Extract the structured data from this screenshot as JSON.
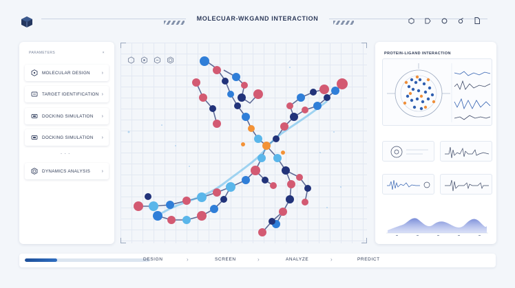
{
  "header": {
    "title": "MOLECUAR-WKGAND INTERACTION",
    "icons": [
      "cube-logo-icon",
      "hexagon-icon",
      "tag-icon",
      "circle-icon",
      "camera-icon",
      "file-icon"
    ]
  },
  "left_panel": {
    "header_label": "PARAMETERS",
    "header_action": "×",
    "items": [
      {
        "label": "MOLECULAR DESIGN",
        "icon": "hexagon-molecule-icon"
      },
      {
        "label": "TARGET IDENTIFICATION",
        "icon": "target-icon"
      },
      {
        "label": "DOCKING SIMULATION",
        "icon": "docking-icon"
      },
      {
        "label": "DOCKING SIMULATION",
        "icon": "docking-icon"
      },
      {
        "label": "DYNAMICS ANALYSIS",
        "icon": "dynamics-icon"
      }
    ],
    "ellipsis": "- - -",
    "chevron": "›"
  },
  "canvas": {
    "toolbar_icons": [
      "hexagon-tool-icon",
      "atom-tool-icon",
      "bond-tool-icon",
      "ring-tool-icon"
    ]
  },
  "right_panel": {
    "title": "PROTEIN-LIGAND INTERACTION"
  },
  "workflow": {
    "progress": 0.26,
    "steps": [
      "DESIGN",
      "SCREEN",
      "ANALYZE",
      "PREDICT"
    ],
    "separator": "›"
  },
  "colors": {
    "accent": "#1d4f9a",
    "atom_blue": "#2f7ed8",
    "atom_navy": "#22337a",
    "atom_red": "#d35a72",
    "atom_light": "#5ab6ea",
    "atom_orange": "#f39236"
  }
}
